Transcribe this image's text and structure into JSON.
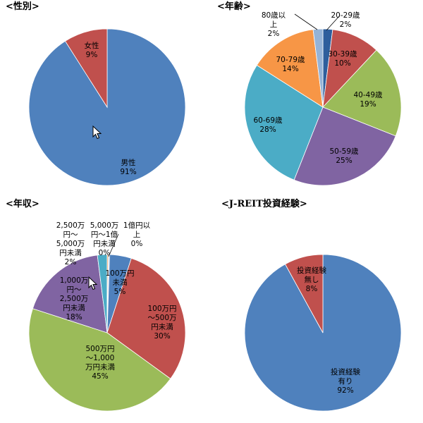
{
  "charts": [
    {
      "title": "<性別>",
      "chart_data": {
        "type": "pie",
        "title": "<性別>",
        "categories": [
          "男性",
          "女性"
        ],
        "values": [
          91,
          9
        ],
        "labels": [
          [
            "男性",
            "91%"
          ],
          [
            "女性",
            "9%"
          ]
        ],
        "colors": [
          "#4f81bd",
          "#c0504d"
        ]
      }
    },
    {
      "title": "<年齢>",
      "chart_data": {
        "type": "pie",
        "title": "<年齢>",
        "categories": [
          "20-29歳",
          "30-39歳",
          "40-49歳",
          "50-59歳",
          "60-69歳",
          "70-79歳",
          "80歳以上"
        ],
        "values": [
          2,
          10,
          19,
          25,
          28,
          14,
          2
        ],
        "labels": [
          [
            "20-29歳",
            "2%"
          ],
          [
            "30-39歳",
            "10%"
          ],
          [
            "40-49歳",
            "19%"
          ],
          [
            "50-59歳",
            "25%"
          ],
          [
            "60-69歳",
            "28%"
          ],
          [
            "70-79歳",
            "14%"
          ],
          [
            "80歳以",
            "上",
            "2%"
          ]
        ],
        "colors": [
          "#2e5e9c",
          "#c0504d",
          "#9bbb59",
          "#8064a2",
          "#4bacc6",
          "#f79646",
          "#95b3d7"
        ]
      }
    },
    {
      "title": "<年収>",
      "chart_data": {
        "type": "pie",
        "title": "<年収>",
        "categories": [
          "100万円未満",
          "100万円～500万円未満",
          "500万円～1,000万円未満",
          "1,000万円～2,500万円未満",
          "2,500万円～5,000万円未満",
          "5,000万円～1億円未満",
          "1億円以上"
        ],
        "values": [
          5,
          30,
          45,
          18,
          2,
          0,
          0
        ],
        "labels": [
          [
            "100万円",
            "未満",
            "5%"
          ],
          [
            "100万円",
            "～500万",
            "円未満",
            "30%"
          ],
          [
            "500万円",
            "～1,000",
            "万円未満",
            "45%"
          ],
          [
            "1,000万",
            "円～",
            "2,500万",
            "円未満",
            "18%"
          ],
          [
            "2,500万",
            "円～",
            "5,000万",
            "円未満",
            "2%"
          ],
          [
            "5,000万",
            "円～1億",
            "円未満",
            "0%"
          ],
          [
            "1億円以",
            "上",
            "0%"
          ]
        ],
        "colors": [
          "#4f81bd",
          "#c0504d",
          "#9bbb59",
          "#8064a2",
          "#4bacc6",
          "#f79646",
          "#c6d9f0"
        ]
      }
    },
    {
      "title": "<J-REIT投資経験>",
      "chart_data": {
        "type": "pie",
        "title": "<J-REIT投資経験>",
        "categories": [
          "投資経験有り",
          "投資経験無し"
        ],
        "values": [
          92,
          8
        ],
        "labels": [
          [
            "投資経験",
            "有り",
            "92%"
          ],
          [
            "投資経験",
            "無し",
            "8%"
          ]
        ],
        "colors": [
          "#4f81bd",
          "#c0504d"
        ]
      }
    }
  ]
}
